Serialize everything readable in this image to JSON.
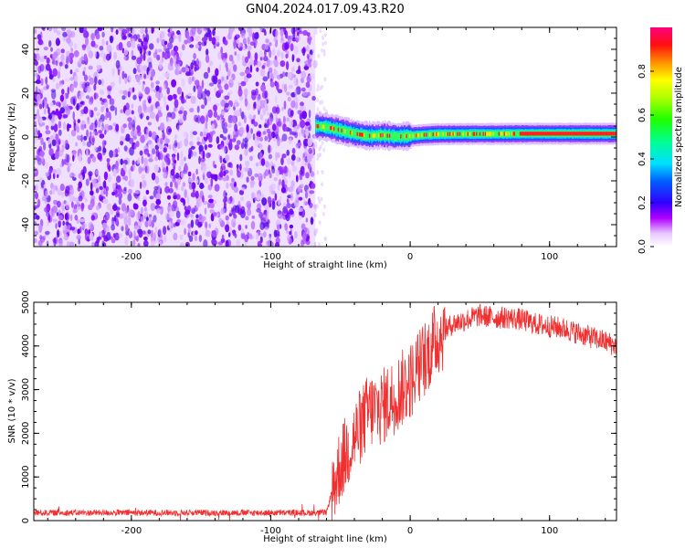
{
  "title": "GN04.2024.017.09.43.R20",
  "chart_data": [
    {
      "type": "heatmap",
      "xlabel": "Height of straight line (km)",
      "ylabel": "Frequency (Hz)",
      "xlim": [
        -270,
        148
      ],
      "ylim": [
        -50,
        50
      ],
      "x_ticks": [
        -200,
        -100,
        0,
        100
      ],
      "x_tick_labels": [
        "-200",
        "-100",
        "0",
        "100"
      ],
      "y_ticks": [
        -40,
        -20,
        0,
        20,
        40
      ],
      "y_tick_labels": [
        "-40",
        "-20",
        "0",
        "20",
        "40"
      ],
      "noise_region_x": [
        -270,
        -68
      ],
      "signal_track": {
        "x": [
          -68,
          -60,
          -50,
          -40,
          -30,
          -20,
          -10,
          0,
          10,
          20,
          40,
          60,
          80,
          100,
          120,
          148
        ],
        "freq": [
          5,
          4.5,
          3,
          1.5,
          0.5,
          0.8,
          0.2,
          0.5,
          1,
          1.3,
          1.4,
          1.4,
          1.5,
          1.5,
          1.5,
          1.5
        ]
      },
      "colorbar": {
        "label": "Normalized spectral amplitude",
        "range": [
          0,
          1
        ],
        "ticks": [
          0.0,
          0.2,
          0.4,
          0.6,
          0.8
        ],
        "tick_labels": [
          "0.0",
          "0.2",
          "0.4",
          "0.6",
          "0.8"
        ]
      },
      "colormap": [
        "#ffffff",
        "#b000ff",
        "#2a00ff",
        "#00e0ff",
        "#00ff60",
        "#80ff00",
        "#ffff00",
        "#ff8000",
        "#ff0030",
        "#ff0080"
      ]
    },
    {
      "type": "line",
      "xlabel": "Height of straight line (km)",
      "ylabel": "SNR (10 * v/v)",
      "xlim": [
        -270,
        148
      ],
      "ylim": [
        0,
        5000
      ],
      "x_ticks": [
        -200,
        -100,
        0,
        100
      ],
      "x_tick_labels": [
        "-200",
        "-100",
        "0",
        "100"
      ],
      "y_ticks": [
        0,
        1000,
        2000,
        3000,
        4000,
        5000
      ],
      "y_tick_labels": [
        "0",
        "1000",
        "2000",
        "3000",
        "4000",
        "5000"
      ],
      "line_color": "#f03030",
      "series": [
        {
          "x": [
            -270,
            -200,
            -150,
            -100,
            -60,
            -56,
            -50,
            -40,
            -30,
            -20,
            -10,
            0,
            10,
            20,
            30,
            40,
            50,
            60,
            70,
            80,
            90,
            100,
            110,
            120,
            130,
            140,
            148
          ],
          "values": [
            180,
            180,
            180,
            180,
            180,
            700,
            1300,
            1900,
            2500,
            2600,
            2900,
            3200,
            3700,
            4200,
            4500,
            4600,
            4700,
            4650,
            4650,
            4600,
            4500,
            4450,
            4400,
            4300,
            4200,
            4100,
            4000
          ]
        }
      ]
    }
  ]
}
